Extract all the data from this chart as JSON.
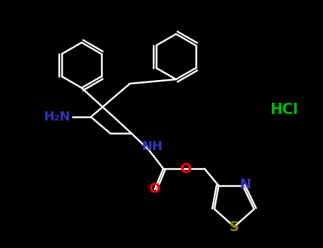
{
  "background_color": "#000000",
  "bond_color": "#ffffff",
  "bond_width": 1.8,
  "atom_colors": {
    "O": "#ff0000",
    "N": "#3333bb",
    "S": "#888800",
    "C": "#ffffff",
    "HCl": "#00bb00"
  },
  "font_size": 13,
  "fig_width": 4.55,
  "fig_height": 3.5,
  "dpi": 100
}
